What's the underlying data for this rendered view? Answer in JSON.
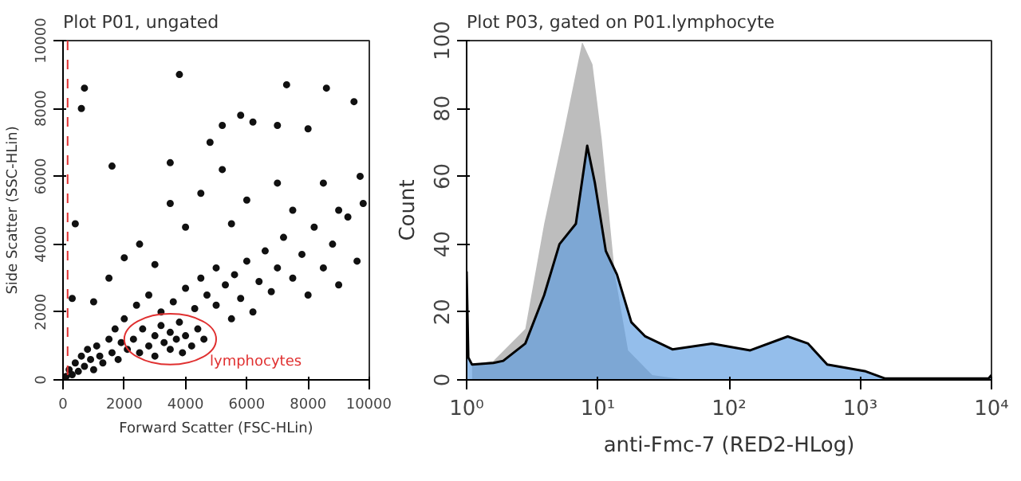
{
  "chart_data": [
    {
      "type": "scatter",
      "title": "Plot P01, ungated",
      "xlabel": "Forward Scatter (FSC-HLin)",
      "ylabel": "Side Scatter (SSC-HLin)",
      "x": [
        100,
        200,
        300,
        400,
        500,
        600,
        700,
        800,
        900,
        1000,
        1100,
        1200,
        1300,
        1500,
        1600,
        1700,
        1800,
        1900,
        2000,
        2100,
        2300,
        2500,
        2600,
        2800,
        3000,
        3000,
        3200,
        3300,
        3500,
        3500,
        3700,
        3800,
        3900,
        4000,
        4200,
        4400,
        4600,
        2400,
        2800,
        3200,
        3600,
        4000,
        4300,
        4500,
        4700,
        5000,
        5000,
        5300,
        5500,
        5600,
        5800,
        6000,
        6200,
        6400,
        6600,
        6800,
        7000,
        7200,
        7500,
        7800,
        8000,
        8200,
        8500,
        8800,
        9000,
        9300,
        9600,
        9800,
        1000,
        1500,
        2000,
        2500,
        3000,
        3500,
        4000,
        4500,
        5500,
        5200,
        6000,
        7000,
        7500,
        8500,
        9000,
        9700,
        1600,
        3500,
        4800,
        5200,
        5800,
        6200,
        7000,
        7300,
        8000,
        8600,
        9500,
        3800,
        700,
        600,
        300,
        400
      ],
      "series": [
        {
          "color": "#111111",
          "values": [
            100,
            300,
            150,
            500,
            250,
            700,
            400,
            900,
            600,
            300,
            1000,
            700,
            500,
            1200,
            800,
            1500,
            600,
            1100,
            1800,
            900,
            1200,
            800,
            1500,
            1000,
            1300,
            700,
            1600,
            1100,
            900,
            1400,
            1200,
            1700,
            800,
            1300,
            1000,
            1500,
            1200,
            2200,
            2500,
            2000,
            2300,
            2700,
            2100,
            3000,
            2500,
            2200,
            3300,
            2800,
            1800,
            3100,
            2400,
            3500,
            2000,
            2900,
            3800,
            2600,
            3300,
            4200,
            3000,
            3700,
            2500,
            4500,
            3300,
            4000,
            2800,
            4800,
            3500,
            5200,
            2300,
            3000,
            3600,
            4000,
            3400,
            5200,
            4500,
            5500,
            4600,
            6200,
            5300,
            5800,
            5000,
            5800,
            5000,
            6000,
            6300,
            6400,
            7000,
            7500,
            7800,
            7600,
            7500,
            8700,
            7400,
            8600,
            8200,
            9000,
            8600,
            8000,
            2400,
            4600
          ]
        }
      ],
      "marker": "circle",
      "xlim": [
        0,
        10000
      ],
      "ylim": [
        0,
        10000
      ],
      "xticks": [
        0,
        2000,
        4000,
        6000,
        8000,
        10000
      ],
      "yticks": [
        0,
        2000,
        4000,
        6000,
        8000,
        10000
      ],
      "grid": false,
      "ref_lines": [
        {
          "axis": "x",
          "value": 150,
          "color": "#e03030",
          "line_style": "dashed"
        }
      ],
      "annotations": [
        "lymphocytes"
      ]
    },
    {
      "type": "area",
      "title": "Plot P03, gated on P01.lymphocyte",
      "xlabel": "anti-Fmc-7 (RED2-HLog)",
      "ylabel": "Count",
      "log": "x",
      "series": [
        {
          "color": "#bdbdbd",
          "x": [
            1.1,
            1.6,
            2.8,
            3.9,
            5.5,
            7.6,
            9.1,
            10.7,
            13.5,
            17,
            26,
            47
          ],
          "values": [
            4.5,
            5.6,
            15,
            46,
            73,
            99.6,
            93,
            71,
            31,
            8.7,
            1.4,
            0
          ]
        },
        {
          "color": "#5b9be0",
          "x": [
            1,
            1.03,
            1.1,
            1.6,
            1.9,
            2.8,
            3.9,
            5.1,
            6.8,
            8.3,
            9.5,
            11.5,
            14,
            18,
            23,
            37,
            74,
            145,
            280,
            400,
            560,
            1100,
            1550,
            9500,
            10000
          ],
          "values": [
            32,
            6.6,
            4.5,
            5,
            5.6,
            10.7,
            25,
            40,
            46,
            69,
            58,
            38,
            31,
            17,
            12.8,
            9,
            10.7,
            8.7,
            12.8,
            10.7,
            4.5,
            2.5,
            0.4,
            0.4,
            1.4
          ]
        }
      ],
      "xlim": [
        1,
        10000
      ],
      "ylim": [
        0,
        100
      ],
      "xticks": [
        {
          "value": 1,
          "label": "10⁰"
        },
        {
          "value": 10,
          "label": "10¹"
        },
        {
          "value": 100,
          "label": "10²"
        },
        {
          "value": 1000,
          "label": "10³"
        },
        {
          "value": 10000,
          "label": "10⁴"
        }
      ],
      "yticks": [
        0,
        20,
        40,
        60,
        80,
        100
      ],
      "grid": false
    }
  ]
}
